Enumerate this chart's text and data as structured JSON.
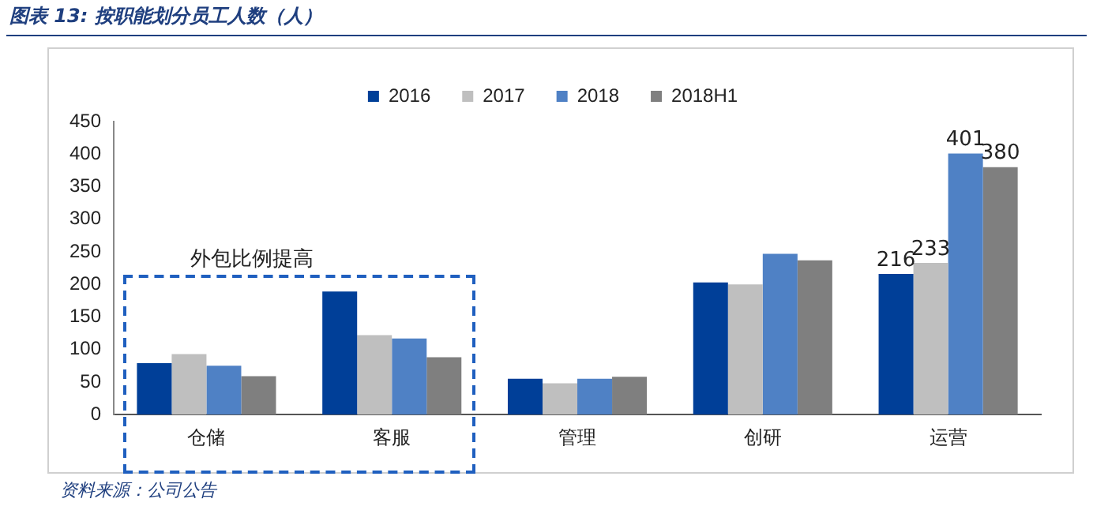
{
  "chart_data": {
    "type": "bar",
    "title": "图表 13: 按职能划分员工人数（人）",
    "categories": [
      "仓储",
      "客服",
      "管理",
      "创研",
      "运营"
    ],
    "series": [
      {
        "name": "2016",
        "color": "#003f98",
        "values": [
          79,
          189,
          55,
          203,
          216
        ],
        "value_labels": [
          null,
          null,
          null,
          null,
          "216"
        ]
      },
      {
        "name": "2017",
        "color": "#bfbfbf",
        "values": [
          93,
          122,
          48,
          200,
          233
        ],
        "value_labels": [
          null,
          null,
          null,
          null,
          "233"
        ]
      },
      {
        "name": "2018",
        "color": "#4f81c5",
        "values": [
          75,
          117,
          55,
          247,
          401
        ],
        "value_labels": [
          null,
          null,
          null,
          null,
          "401"
        ]
      },
      {
        "name": "2018H1",
        "color": "#7f7f7f",
        "values": [
          59,
          88,
          58,
          237,
          380
        ],
        "value_labels": [
          null,
          null,
          null,
          null,
          "380"
        ]
      }
    ],
    "ylim": [
      0,
      450
    ],
    "yticks": [
      0,
      50,
      100,
      150,
      200,
      250,
      300,
      350,
      400,
      450
    ],
    "grid": false,
    "legend": "top",
    "annotations": [
      "外包比例提高",
      "资料来源：公司公告"
    ]
  }
}
